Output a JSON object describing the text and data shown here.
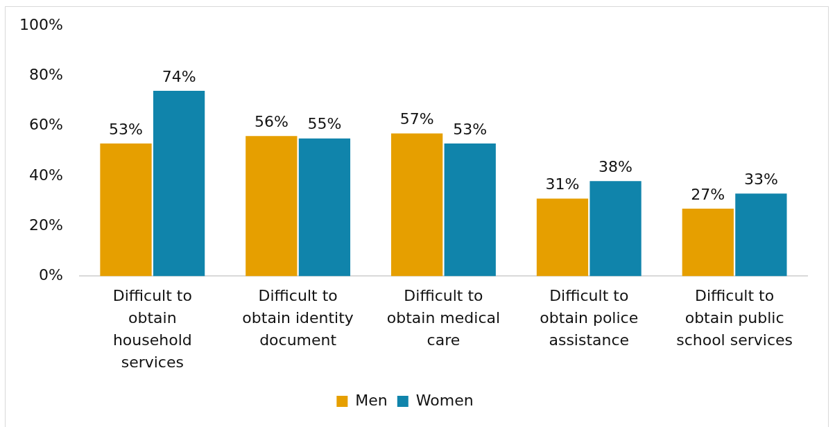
{
  "chart_data": {
    "type": "bar",
    "categories": [
      "Difficult to obtain household services",
      "Difficult to obtain identity document",
      "Difficult to obtain medical care",
      "Difficult to obtain police assistance",
      "Difficult to obtain public school services"
    ],
    "series": [
      {
        "name": "Men",
        "color": "#e69f00",
        "values": [
          53,
          56,
          57,
          31,
          27
        ],
        "value_labels": [
          "53%",
          "56%",
          "57%",
          "31%",
          "27%"
        ]
      },
      {
        "name": "Women",
        "color": "#1084ab",
        "values": [
          74,
          55,
          53,
          38,
          33
        ],
        "value_labels": [
          "74%",
          "55%",
          "53%",
          "38%",
          "33%"
        ]
      }
    ],
    "ylim": [
      0,
      100
    ],
    "yticks": [
      {
        "value": 0,
        "label": "0%"
      },
      {
        "value": 20,
        "label": "20%"
      },
      {
        "value": 40,
        "label": "40%"
      },
      {
        "value": 60,
        "label": "60%"
      },
      {
        "value": 80,
        "label": "80%"
      },
      {
        "value": 100,
        "label": "100%"
      }
    ],
    "legend": "bottom"
  }
}
